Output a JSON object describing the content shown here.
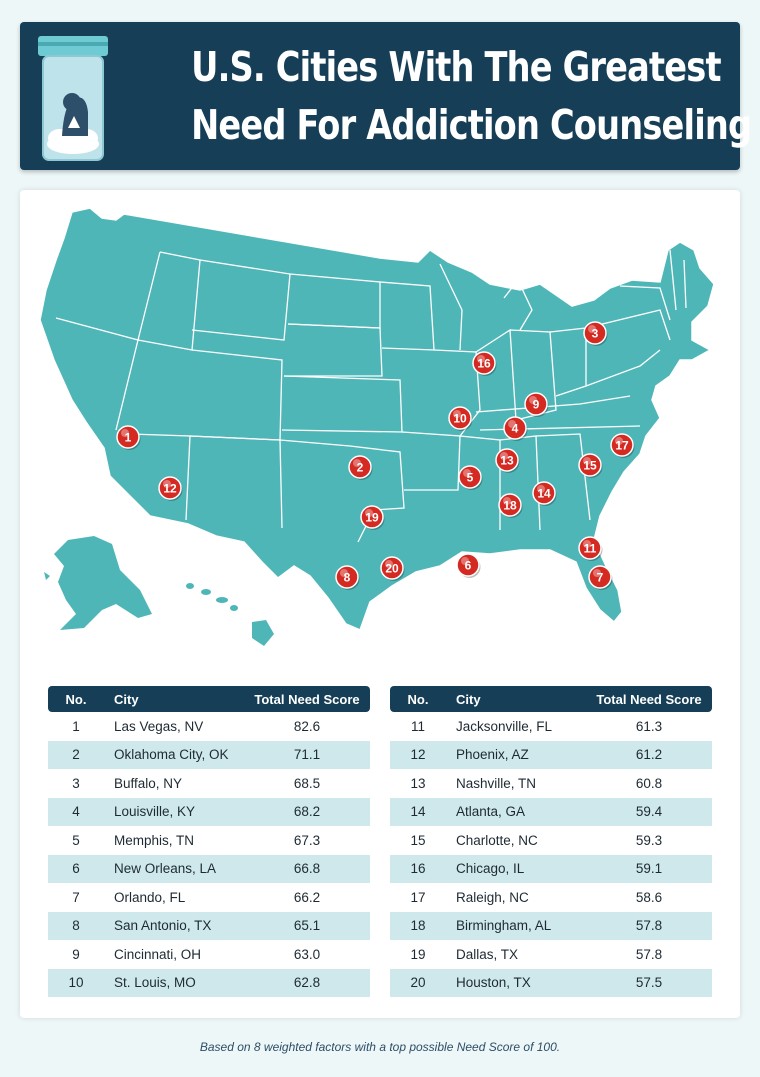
{
  "header": {
    "title_line1": "U.S. Cities With The Greatest",
    "title_line2": "Need For Addiction Counseling",
    "icon": "pill-bottle-icon"
  },
  "colors": {
    "navy": "#163f57",
    "map_teal": "#4fb6b8",
    "marker_red": "#d42a22",
    "row_alt": "#cfe8ec"
  },
  "map": {
    "markers": [
      "1",
      "2",
      "3",
      "4",
      "5",
      "6",
      "7",
      "8",
      "9",
      "10",
      "11",
      "12",
      "13",
      "14",
      "15",
      "16",
      "17",
      "18",
      "19",
      "20"
    ]
  },
  "table": {
    "headers": {
      "no": "No.",
      "city": "City",
      "score": "Total Need Score"
    },
    "left_rows": [
      {
        "no": "1",
        "city": "Las Vegas, NV",
        "score": "82.6"
      },
      {
        "no": "2",
        "city": "Oklahoma City, OK",
        "score": "71.1"
      },
      {
        "no": "3",
        "city": "Buffalo, NY",
        "score": "68.5"
      },
      {
        "no": "4",
        "city": "Louisville, KY",
        "score": "68.2"
      },
      {
        "no": "5",
        "city": "Memphis, TN",
        "score": "67.3"
      },
      {
        "no": "6",
        "city": "New Orleans, LA",
        "score": "66.8"
      },
      {
        "no": "7",
        "city": "Orlando, FL",
        "score": "66.2"
      },
      {
        "no": "8",
        "city": "San Antonio, TX",
        "score": "65.1"
      },
      {
        "no": "9",
        "city": "Cincinnati, OH",
        "score": "63.0"
      },
      {
        "no": "10",
        "city": "St. Louis, MO",
        "score": "62.8"
      }
    ],
    "right_rows": [
      {
        "no": "11",
        "city": "Jacksonville, FL",
        "score": "61.3"
      },
      {
        "no": "12",
        "city": "Phoenix, AZ",
        "score": "61.2"
      },
      {
        "no": "13",
        "city": "Nashville, TN",
        "score": "60.8"
      },
      {
        "no": "14",
        "city": "Atlanta, GA",
        "score": "59.4"
      },
      {
        "no": "15",
        "city": "Charlotte, NC",
        "score": "59.3"
      },
      {
        "no": "16",
        "city": "Chicago, IL",
        "score": "59.1"
      },
      {
        "no": "17",
        "city": "Raleigh, NC",
        "score": "58.6"
      },
      {
        "no": "18",
        "city": "Birmingham, AL",
        "score": "57.8"
      },
      {
        "no": "19",
        "city": "Dallas, TX",
        "score": "57.8"
      },
      {
        "no": "20",
        "city": "Houston, TX",
        "score": "57.5"
      }
    ]
  },
  "footnote": "Based on 8 weighted factors with a top possible Need Score of 100."
}
